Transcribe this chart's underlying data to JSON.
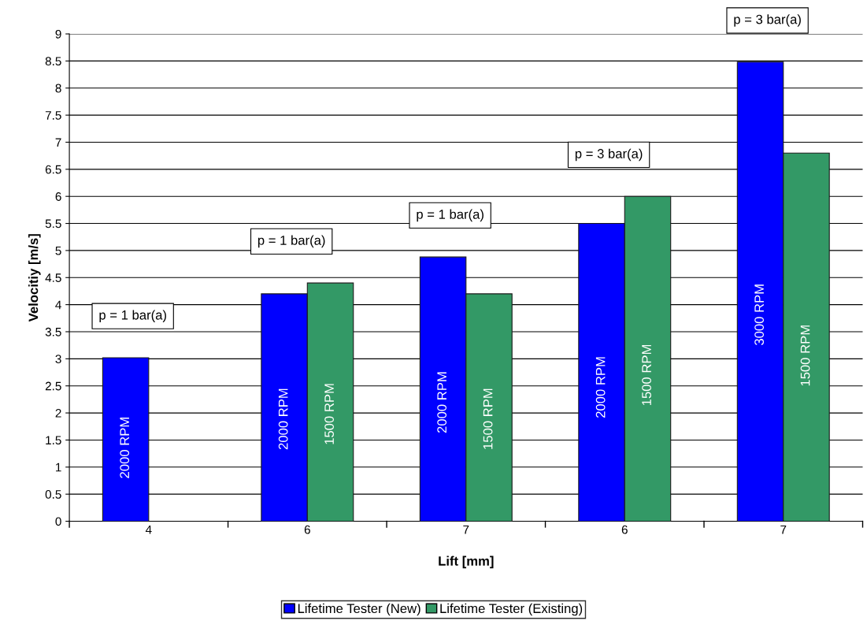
{
  "chart_data": {
    "type": "bar",
    "xlabel": "Lift [mm]",
    "ylabel": "Velocitiy [m/s]",
    "categories": [
      "4",
      "6",
      "7",
      "6",
      "7"
    ],
    "series": [
      {
        "name": "Lifetime Tester (New)",
        "color": "#0000ff",
        "values": [
          3.02,
          4.2,
          4.88,
          5.5,
          8.48
        ]
      },
      {
        "name": "Lifetime Tester (Existing)",
        "color": "#339966",
        "values": [
          null,
          4.4,
          4.2,
          6.0,
          6.8
        ]
      }
    ],
    "annotations": [
      "p = 1 bar(a)",
      "p = 1 bar(a)",
      "p = 1 bar(a)",
      "p = 3 bar(a)",
      "p = 3 bar(a)",
      "2000 RPM",
      "2000 RPM",
      "2000 RPM",
      "2000 RPM",
      "3000 RPM",
      "1500 RPM",
      "1500 RPM",
      "1500 RPM",
      "1500 RPM"
    ],
    "ylim": [
      0,
      9
    ],
    "yticks": [
      0,
      0.5,
      1,
      1.5,
      2,
      2.5,
      3,
      3.5,
      4,
      4.5,
      5,
      5.5,
      6,
      6.5,
      7,
      7.5,
      8,
      8.5,
      9
    ],
    "grid": "y",
    "legend": "bottom"
  }
}
